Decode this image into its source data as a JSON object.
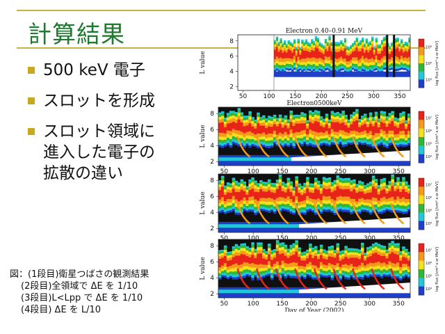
{
  "slide": {
    "title": "計算結果",
    "bullets": [
      "500 keV 電子",
      "スロットを形成",
      "スロット領域に",
      "進入した電子の",
      "拡散の違い"
    ],
    "caption": {
      "line1": "図：(1段目)衛星つばさの観測結果",
      "line2": "(2段目)全領域で ΔE を 1/10",
      "line3": "(3段目)L<Lpp で ΔE を 1/10",
      "line4": "(4段目) ΔE を L/10"
    }
  },
  "figure": {
    "panel_titles": [
      "Electron 0.40–0.91 MeV",
      "Electron0500keV",
      "",
      ""
    ],
    "y_axis_label": "L value",
    "x_axis_label": "Day of Year (2002)",
    "x_ticks": [
      "50",
      "100",
      "150",
      "200",
      "250",
      "300",
      "350"
    ],
    "y_ticks": [
      "2",
      "4",
      "6",
      "8"
    ],
    "colorbar_label": "log flux [/cm²·s·sr·MeV]",
    "colorbar_ticks_first": [
      "10⁶",
      "10⁵",
      "10⁴"
    ],
    "colorbar_ticks": [
      "10⁷",
      "10⁶",
      "10⁵",
      "10⁴"
    ],
    "colors": {
      "red": "#e8241a",
      "orange": "#f59a1b",
      "yellow": "#f5e21c",
      "green": "#2fb73a",
      "cyan": "#20c8d8",
      "blue": "#1f3fc9",
      "dark": "#101010"
    }
  }
}
